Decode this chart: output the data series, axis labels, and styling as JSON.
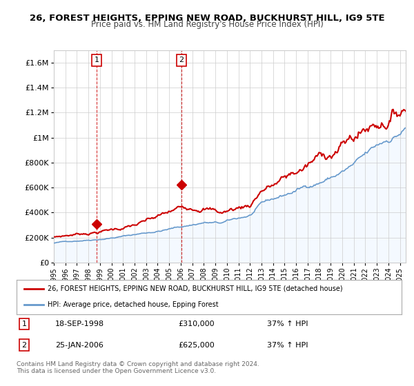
{
  "title": "26, FOREST HEIGHTS, EPPING NEW ROAD, BUCKHURST HILL, IG9 5TE",
  "subtitle": "Price paid vs. HM Land Registry's House Price Index (HPI)",
  "x_start": 1995.0,
  "x_end": 2025.5,
  "y_min": 0,
  "y_max": 1700000,
  "y_ticks": [
    0,
    200000,
    400000,
    600000,
    800000,
    1000000,
    1200000,
    1400000,
    1600000
  ],
  "y_tick_labels": [
    "£0",
    "£200K",
    "£400K",
    "£600K",
    "£800K",
    "£1M",
    "£1.2M",
    "£1.4M",
    "£1.6M"
  ],
  "sale1_x": 1998.72,
  "sale1_y": 310000,
  "sale2_x": 2006.07,
  "sale2_y": 625000,
  "red_color": "#cc0000",
  "blue_color": "#6699cc",
  "blue_fill_color": "#ddeeff",
  "vline_color": "#cc0000",
  "legend_line1": "26, FOREST HEIGHTS, EPPING NEW ROAD, BUCKHURST HILL, IG9 5TE (detached house)",
  "legend_line2": "HPI: Average price, detached house, Epping Forest",
  "table_row1": [
    "1",
    "18-SEP-1998",
    "£310,000",
    "37% ↑ HPI"
  ],
  "table_row2": [
    "2",
    "25-JAN-2006",
    "£625,000",
    "37% ↑ HPI"
  ],
  "footer": "Contains HM Land Registry data © Crown copyright and database right 2024.\nThis data is licensed under the Open Government Licence v3.0.",
  "x_ticks": [
    1995,
    1996,
    1997,
    1998,
    1999,
    2000,
    2001,
    2002,
    2003,
    2004,
    2005,
    2006,
    2007,
    2008,
    2009,
    2010,
    2011,
    2012,
    2013,
    2014,
    2015,
    2016,
    2017,
    2018,
    2019,
    2020,
    2021,
    2022,
    2023,
    2024,
    2025
  ]
}
